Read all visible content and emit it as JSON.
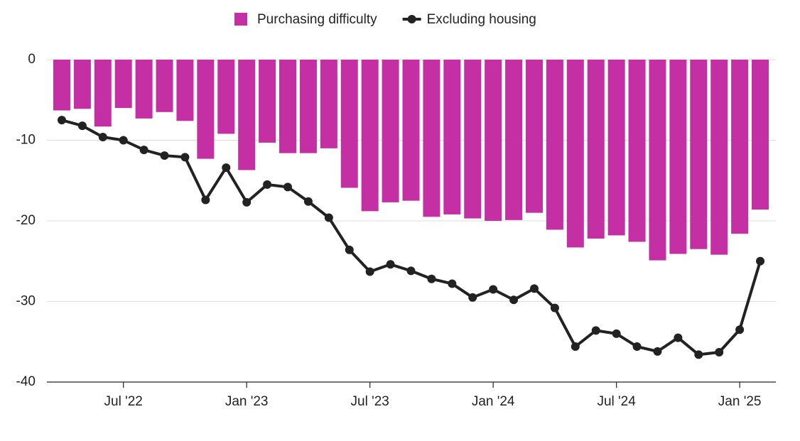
{
  "chart_data": {
    "type": "bar_line",
    "categories": [
      null,
      null,
      null,
      "Jul '22",
      null,
      null,
      null,
      null,
      null,
      "Jan '23",
      null,
      null,
      null,
      null,
      null,
      "Jul '23",
      null,
      null,
      null,
      null,
      null,
      "Jan '24",
      null,
      null,
      null,
      null,
      null,
      "Jul '24",
      null,
      null,
      null,
      null,
      null,
      "Jan '25",
      null
    ],
    "series": [
      {
        "name": "Purchasing difficulty",
        "kind": "bar",
        "color": "#c42fa4",
        "values": [
          -6.3,
          -6.1,
          -8.3,
          -6.0,
          -7.3,
          -6.5,
          -7.6,
          -12.3,
          -9.2,
          -13.7,
          -10.3,
          -11.6,
          -11.6,
          -11.0,
          -15.9,
          -18.8,
          -17.7,
          -17.5,
          -19.5,
          -19.2,
          -19.7,
          -20.0,
          -19.9,
          -19.0,
          -21.1,
          -23.3,
          -22.2,
          -21.8,
          -22.6,
          -24.9,
          -24.1,
          -23.5,
          -24.2,
          -21.6,
          -18.6
        ]
      },
      {
        "name": "Excluding housing",
        "kind": "line",
        "color": "#222222",
        "values": [
          -7.5,
          -8.2,
          -9.6,
          -10.0,
          -11.2,
          -11.9,
          -12.1,
          -17.4,
          -13.4,
          -17.7,
          -15.5,
          -15.8,
          -17.6,
          -19.6,
          -23.6,
          -26.3,
          -25.4,
          -26.2,
          -27.2,
          -27.8,
          -29.5,
          -28.5,
          -29.8,
          -28.4,
          -30.8,
          -35.6,
          -33.6,
          -34.0,
          -35.6,
          -36.2,
          -34.5,
          -36.6,
          -36.3,
          -33.5,
          -25.0
        ]
      }
    ],
    "ylim": [
      -40,
      0
    ],
    "yticks": [
      -40,
      -30,
      -20,
      -10,
      0
    ],
    "grid": true,
    "legend": "top"
  }
}
